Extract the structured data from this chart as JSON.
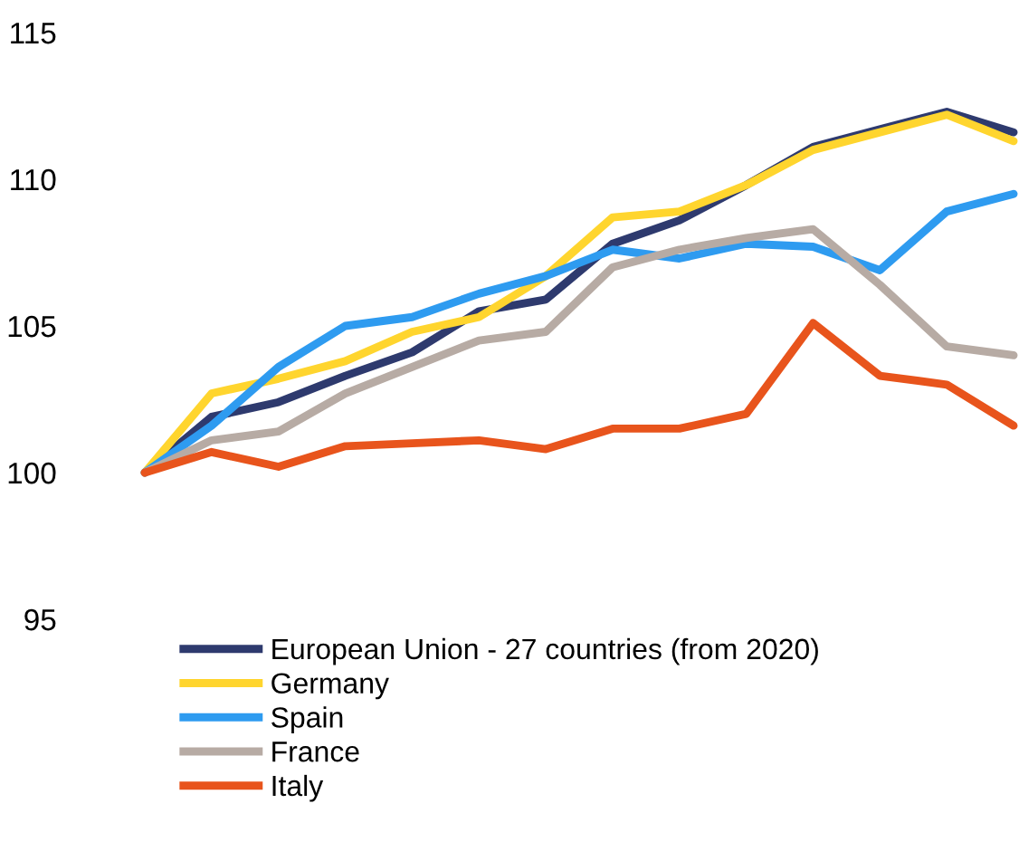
{
  "chart_data": {
    "type": "line",
    "categories": [
      null,
      null,
      null,
      null,
      null,
      null,
      null,
      null,
      null,
      null,
      null,
      null,
      null,
      null
    ],
    "ylim": [
      95,
      115
    ],
    "yticks": [
      95,
      100,
      105,
      110,
      115
    ],
    "grid": false,
    "legend": "bottom",
    "tick_labels": "y",
    "marker": "none",
    "line_style": "solid",
    "series": [
      {
        "name": "European Union - 27 countries (from 2020)",
        "color": "#2e3a6e",
        "values": [
          100,
          101.9,
          102.4,
          103.3,
          104.1,
          105.5,
          105.9,
          107.8,
          108.6,
          109.8,
          111.1,
          111.7,
          112.3,
          111.6
        ]
      },
      {
        "name": "Germany",
        "color": "#ffd52e",
        "values": [
          100,
          102.7,
          103.2,
          103.8,
          104.8,
          105.3,
          106.7,
          108.7,
          108.9,
          109.8,
          111.0,
          111.6,
          112.2,
          111.3
        ]
      },
      {
        "name": "Spain",
        "color": "#2e9bf0",
        "values": [
          100,
          101.6,
          103.6,
          105.0,
          105.3,
          106.1,
          106.7,
          107.6,
          107.3,
          107.8,
          107.7,
          106.9,
          108.9,
          109.5
        ]
      },
      {
        "name": "France",
        "color": "#b7aba4",
        "values": [
          100,
          101.1,
          101.4,
          102.7,
          103.6,
          104.5,
          104.8,
          107.0,
          107.6,
          108.0,
          108.3,
          106.4,
          104.3,
          104.0
        ]
      },
      {
        "name": "Italy",
        "color": "#e8541c",
        "values": [
          100,
          100.7,
          100.2,
          100.9,
          101.0,
          101.1,
          100.8,
          101.5,
          101.5,
          102.0,
          105.1,
          103.3,
          103.0,
          101.6
        ]
      }
    ]
  }
}
